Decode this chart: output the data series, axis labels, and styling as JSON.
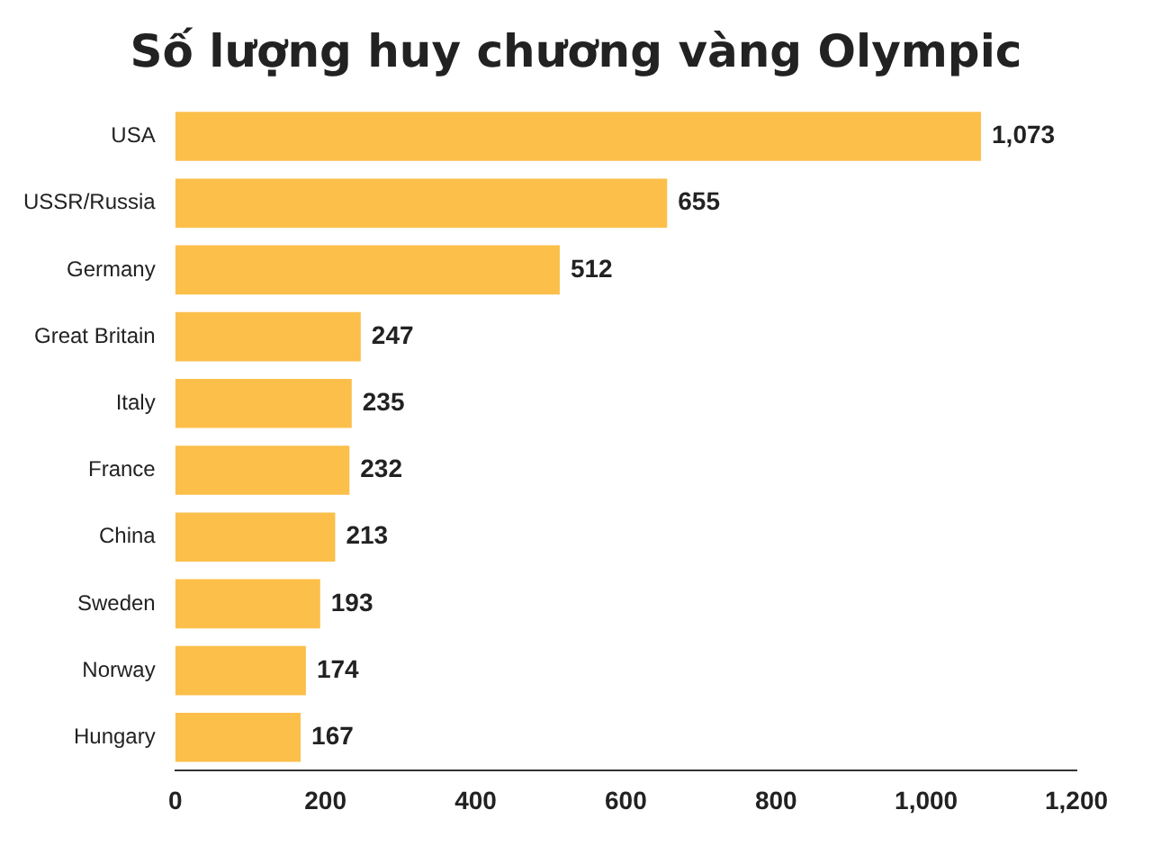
{
  "chart_data": {
    "type": "bar",
    "orientation": "horizontal",
    "title": "Số lượng huy chương vàng Olympic",
    "categories": [
      "USA",
      "USSR/Russia",
      "Germany",
      "Great Britain",
      "Italy",
      "France",
      "China",
      "Sweden",
      "Norway",
      "Hungary"
    ],
    "values": [
      1073,
      655,
      512,
      247,
      235,
      232,
      213,
      193,
      174,
      167
    ],
    "value_labels": [
      "1,073",
      "655",
      "512",
      "247",
      "235",
      "232",
      "213",
      "193",
      "174",
      "167"
    ],
    "color": "#fbbf4a",
    "xlim": [
      0,
      1200
    ],
    "xticks": [
      0,
      200,
      400,
      600,
      800,
      {
        "value": 1000,
        "label": "1,000"
      },
      {
        "value": 1200,
        "label": "1,200"
      }
    ],
    "grid": false
  }
}
